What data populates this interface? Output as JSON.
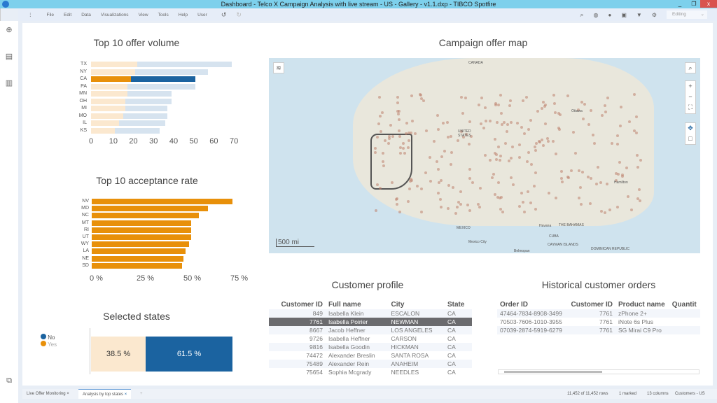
{
  "window": {
    "title": "Dashboard - Telco X Campaign Analysis with live stream - US - Gallery - v1.1.dxp - TIBCO Spotfire",
    "minimize": "_",
    "maximize": "❐",
    "close": "x"
  },
  "menu": [
    "File",
    "Edit",
    "Data",
    "Visualizations",
    "View",
    "Tools",
    "Help",
    "User"
  ],
  "toolbar": {
    "mode": "Editing"
  },
  "offer_volume": {
    "title": "Top 10 offer volume",
    "chart_data": {
      "type": "bar",
      "orientation": "horizontal",
      "stacked": true,
      "categories": [
        "TX",
        "NY",
        "CA",
        "PA",
        "MN",
        "OH",
        "MI",
        "MO",
        "IL",
        "KS"
      ],
      "series": [
        {
          "name": "Yes",
          "values": [
            23,
            22,
            20,
            18,
            18,
            17,
            17,
            16,
            14,
            12
          ]
        },
        {
          "name": "No",
          "values": [
            47,
            36,
            32,
            34,
            22,
            23,
            21,
            22,
            23,
            22
          ]
        }
      ],
      "marked": "CA",
      "xlim": [
        0,
        70
      ],
      "xticks": [
        "0",
        "10",
        "20",
        "30",
        "40",
        "50",
        "60",
        "70"
      ]
    }
  },
  "acceptance": {
    "title": "Top 10 acceptance rate",
    "chart_data": {
      "type": "bar",
      "orientation": "horizontal",
      "categories": [
        "NV",
        "MD",
        "NC",
        "MT",
        "RI",
        "UT",
        "WY",
        "LA",
        "NE",
        "SD"
      ],
      "values": [
        75,
        62,
        57,
        53,
        53,
        53,
        52,
        50,
        49,
        48
      ],
      "xlim": [
        0,
        75
      ],
      "xticks": [
        "0 %",
        "25 %",
        "50 %",
        "75 %"
      ]
    }
  },
  "selected": {
    "title": "Selected states",
    "legend": [
      "No",
      "Yes"
    ],
    "chart_data": {
      "type": "bar",
      "stacked": true,
      "series": [
        {
          "name": "Yes",
          "value": 38.5,
          "label": "38.5 %"
        },
        {
          "name": "No",
          "value": 61.5,
          "label": "61.5 %"
        }
      ]
    }
  },
  "map": {
    "title": "Campaign offer map",
    "scale": "500 mi",
    "labels": [
      "CANADA",
      "Ottawa",
      "UNITED STATES",
      "MEXICO",
      "Mexico City",
      "Havana",
      "CUBA",
      "THE BAHAMAS",
      "Hamilton",
      "Belmopan",
      "CAYMAN ISLANDS",
      "DOMINICAN REPUBLIC"
    ]
  },
  "customer_profile": {
    "title": "Customer profile",
    "columns": [
      "Customer ID",
      "Full name",
      "City",
      "State"
    ],
    "rows": [
      [
        "849",
        "Isabella Klein",
        "ESCALON",
        "CA"
      ],
      [
        "7761",
        "Isabella Poirier",
        "NEWMAN",
        "CA"
      ],
      [
        "8667",
        "Jacob Heffner",
        "LOS ANGELES",
        "CA"
      ],
      [
        "9726",
        "Isabella Heffner",
        "CARSON",
        "CA"
      ],
      [
        "9816",
        "Isabella Goodin",
        "HICKMAN",
        "CA"
      ],
      [
        "74472",
        "Alexander Breslin",
        "SANTA ROSA",
        "CA"
      ],
      [
        "75489",
        "Alexander Rein",
        "ANAHEIM",
        "CA"
      ],
      [
        "75654",
        "Sophia Mcgrady",
        "NEEDLES",
        "CA"
      ]
    ]
  },
  "orders": {
    "title": "Historical customer orders",
    "columns": [
      "Order ID",
      "Customer ID",
      "Product name",
      "Quantit"
    ],
    "rows": [
      [
        "47464-7834-8908-3499",
        "7761",
        "zPhone 2+",
        ""
      ],
      [
        "70503-7606-1010-3955",
        "7761",
        "iNote 6s Plus",
        ""
      ],
      [
        "07039-2874-5919-6279",
        "7761",
        "SG Mirai C9 Pro",
        ""
      ]
    ]
  },
  "tabs": [
    "Live Offer Monitoring",
    "Analysis by top states"
  ],
  "status": {
    "rows": "11,452 of 11,452 rows",
    "marked": "1 marked",
    "columns": "13 columns",
    "table": "Customers - US"
  },
  "colors": {
    "yes": "#e8900a",
    "no": "#1b63a0",
    "yes_light": "#fbe8cf",
    "no_light": "#d6e3ef"
  }
}
